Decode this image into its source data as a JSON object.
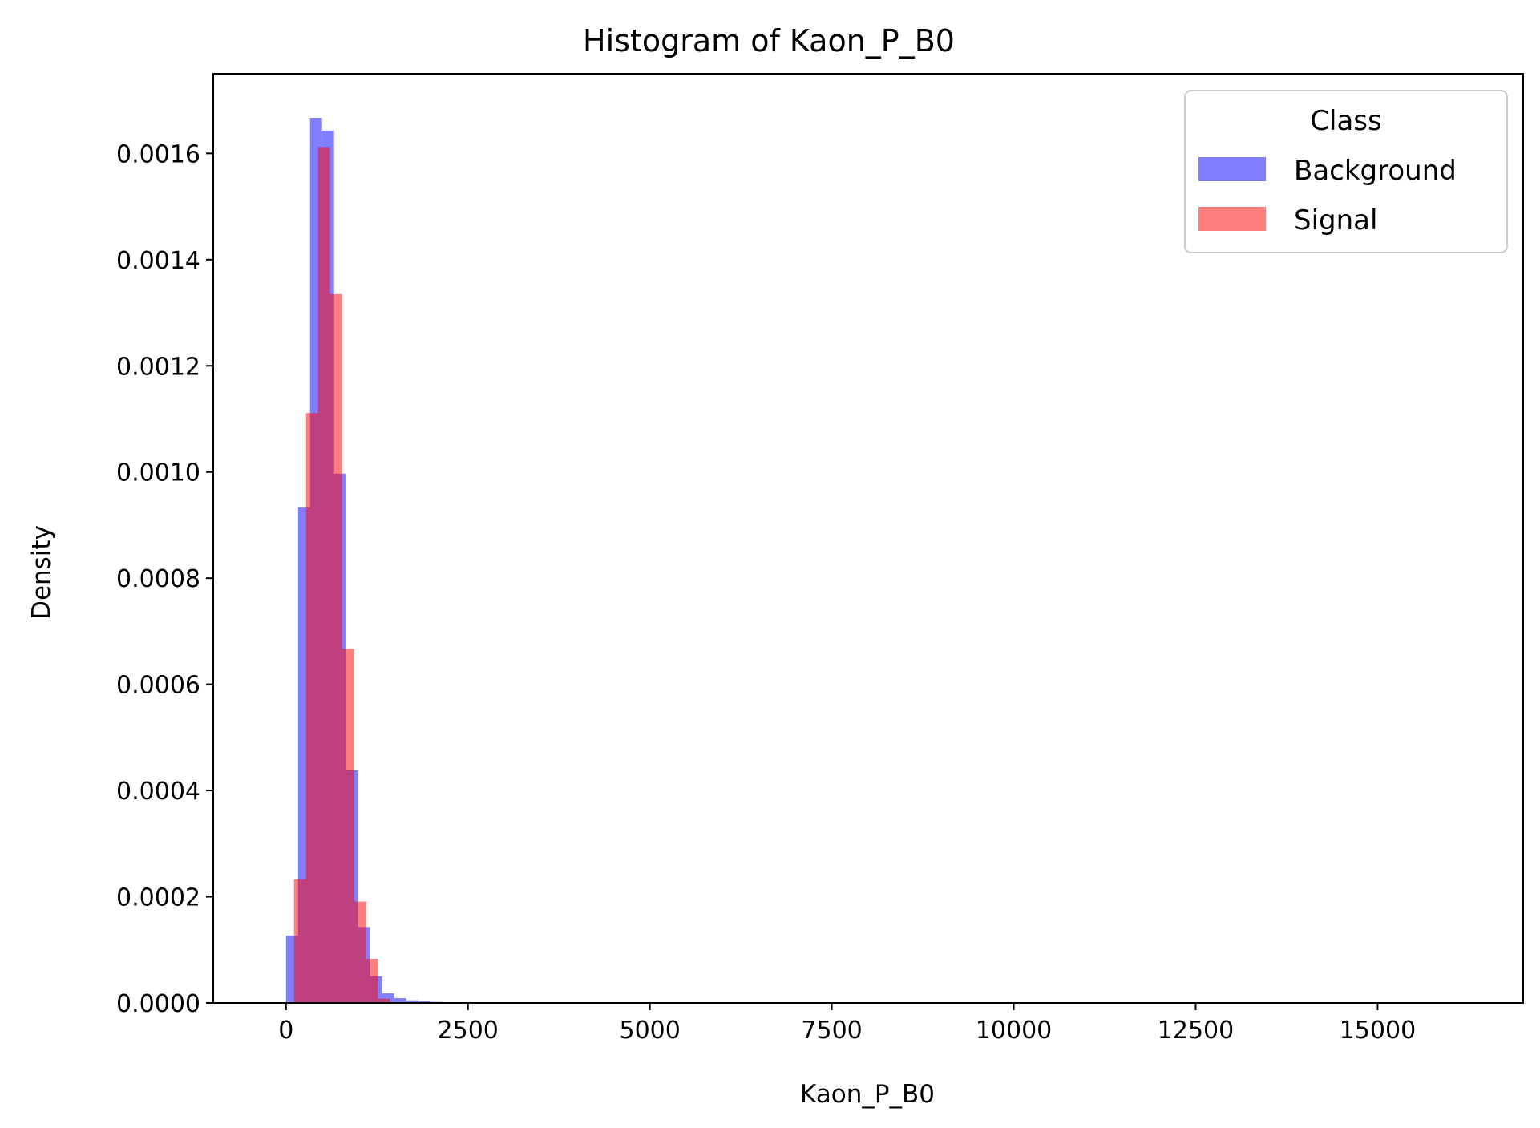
{
  "chart_data": {
    "type": "bar",
    "title": "Histogram of Kaon_P_B0",
    "xlabel": "Kaon_P_B0",
    "ylabel": "Density",
    "xlim": [
      -1000,
      17000
    ],
    "ylim": [
      0,
      0.00175
    ],
    "xticks": [
      0,
      2500,
      5000,
      7500,
      10000,
      12500,
      15000
    ],
    "xtick_labels": [
      "0",
      "2500",
      "5000",
      "7500",
      "10000",
      "12500",
      "15000"
    ],
    "yticks": [
      0,
      0.0002,
      0.0004,
      0.0006,
      0.0008,
      0.001,
      0.0012,
      0.0014,
      0.0016
    ],
    "ytick_labels": [
      "0.0000",
      "0.0002",
      "0.0004",
      "0.0006",
      "0.0008",
      "0.0010",
      "0.0012",
      "0.0014",
      "0.0016"
    ],
    "grid": false,
    "legend": {
      "title": "Class",
      "placement": "top-right"
    },
    "series": [
      {
        "name": "Background",
        "color": "#0000ff",
        "opacity": 0.5,
        "bin_width": 165,
        "bins": [
          {
            "x": 0,
            "y": 0.000127
          },
          {
            "x": 165,
            "y": 0.000933
          },
          {
            "x": 330,
            "y": 0.001667
          },
          {
            "x": 495,
            "y": 0.001643
          },
          {
            "x": 660,
            "y": 0.000997
          },
          {
            "x": 825,
            "y": 0.000438
          },
          {
            "x": 990,
            "y": 0.000143
          },
          {
            "x": 1155,
            "y": 5e-05
          },
          {
            "x": 1320,
            "y": 1.8e-05
          },
          {
            "x": 1485,
            "y": 9e-06
          },
          {
            "x": 1650,
            "y": 5e-06
          },
          {
            "x": 1815,
            "y": 3e-06
          },
          {
            "x": 1980,
            "y": 2e-06
          }
        ]
      },
      {
        "name": "Signal",
        "color": "#ff0000",
        "opacity": 0.5,
        "bin_width": 165,
        "bins": [
          {
            "x": 110,
            "y": 0.000233
          },
          {
            "x": 275,
            "y": 0.001111
          },
          {
            "x": 440,
            "y": 0.001612
          },
          {
            "x": 605,
            "y": 0.001335
          },
          {
            "x": 770,
            "y": 0.000667
          },
          {
            "x": 935,
            "y": 0.000191
          },
          {
            "x": 1100,
            "y": 8.3e-05
          },
          {
            "x": 1265,
            "y": 8e-06
          }
        ]
      }
    ]
  }
}
